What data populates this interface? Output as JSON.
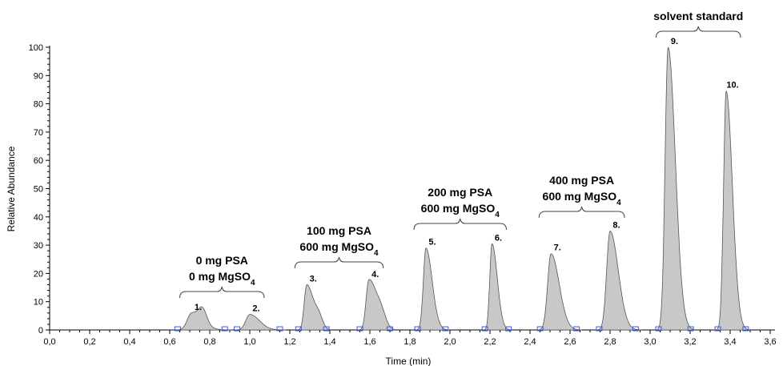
{
  "chart_data": {
    "type": "area",
    "xlabel": "Time (min)",
    "ylabel": "Relative Abundance",
    "xlim": [
      0.0,
      3.6
    ],
    "ylim": [
      0,
      100
    ],
    "x_ticks": [
      "0,0",
      "0,2",
      "0,4",
      "0,6",
      "0,8",
      "1,0",
      "1,2",
      "1,4",
      "1,6",
      "1,8",
      "2,0",
      "2,2",
      "2,4",
      "2,6",
      "2,8",
      "3,0",
      "3,2",
      "3,4",
      "3,6"
    ],
    "y_ticks": [
      "0",
      "10",
      "20",
      "30",
      "40",
      "50",
      "60",
      "70",
      "80",
      "90",
      "100"
    ],
    "fill_color": "#c8c8c8",
    "stroke_color": "#555555",
    "marker_color": "#3b5bdb",
    "peaks": [
      {
        "label": "1.",
        "apex_time": 0.71,
        "height": 6
      },
      {
        "label": "2.",
        "apex_time": 1.0,
        "height": 5.5
      },
      {
        "label": "3.",
        "apex_time": 1.285,
        "height": 16
      },
      {
        "label": "4.",
        "apex_time": 1.595,
        "height": 17.5
      },
      {
        "label": "5.",
        "apex_time": 1.88,
        "height": 29
      },
      {
        "label": "6.",
        "apex_time": 2.21,
        "height": 30.5
      },
      {
        "label": "7.",
        "apex_time": 2.505,
        "height": 27
      },
      {
        "label": "8.",
        "apex_time": 2.8,
        "height": 35
      },
      {
        "label": "9.",
        "apex_time": 3.09,
        "height": 100
      },
      {
        "label": "10.",
        "apex_time": 3.38,
        "height": 84.5
      }
    ],
    "groups": [
      {
        "line1": "0 mg PSA",
        "line2_base": "0 mg MgSO",
        "subscript": "4"
      },
      {
        "line1": "100 mg PSA",
        "line2_base": "600 mg MgSO",
        "subscript": "4"
      },
      {
        "line1": "200 mg PSA",
        "line2_base": "600 mg MgSO",
        "subscript": "4"
      },
      {
        "line1": "400 mg PSA",
        "line2_base": "600 mg MgSO",
        "subscript": "4"
      },
      {
        "line1": "solvent standard"
      }
    ]
  }
}
